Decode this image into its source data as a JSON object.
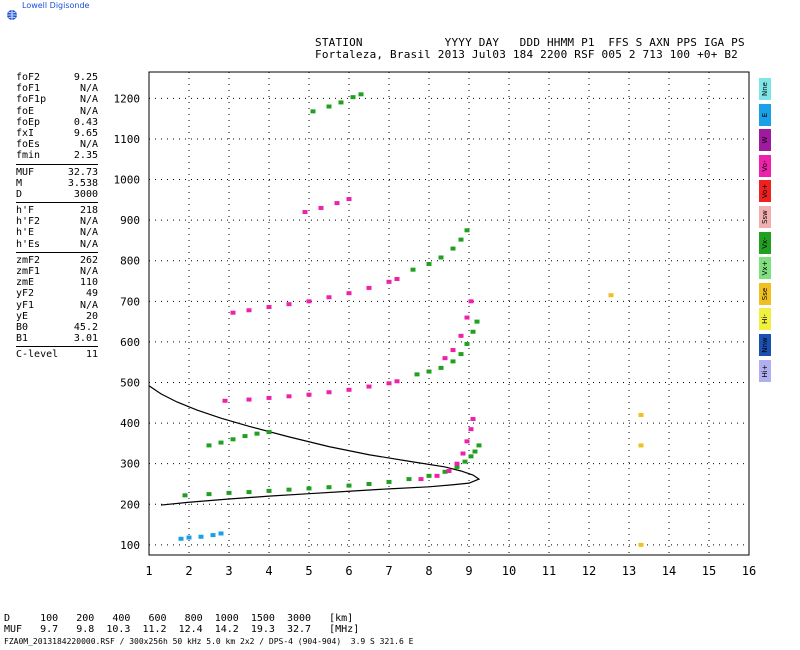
{
  "brand": {
    "label": "Lowell Digisonde"
  },
  "header": {
    "line1": "STATION            YYYY DAY   DDD HHMM P1  FFS S AXN PPS IGA PS",
    "line2": "Fortaleza, Brasil 2013 Jul03 184 2200 RSF 005 2 713 100 +0+ B2"
  },
  "parameters": [
    {
      "name": "foF2",
      "value": "9.25"
    },
    {
      "name": "foF1",
      "value": "N/A"
    },
    {
      "name": "foF1p",
      "value": "N/A"
    },
    {
      "name": "foE",
      "value": "N/A"
    },
    {
      "name": "foEp",
      "value": "0.43"
    },
    {
      "name": "fxI",
      "value": "9.65"
    },
    {
      "name": "foEs",
      "value": "N/A"
    },
    {
      "name": "fmin",
      "value": "2.35"
    },
    {
      "sep": true
    },
    {
      "name": "MUF",
      "value": "32.73"
    },
    {
      "name": "M",
      "value": "3.538"
    },
    {
      "name": "D",
      "value": "3000"
    },
    {
      "sep": true
    },
    {
      "name": "h'F",
      "value": "218"
    },
    {
      "name": "h'F2",
      "value": "N/A"
    },
    {
      "name": "h'E",
      "value": "N/A"
    },
    {
      "name": "h'Es",
      "value": "N/A"
    },
    {
      "sep": true
    },
    {
      "name": "zmF2",
      "value": "262"
    },
    {
      "name": "zmF1",
      "value": "N/A"
    },
    {
      "name": "zmE",
      "value": "110"
    },
    {
      "name": "yF2",
      "value": "49"
    },
    {
      "name": "yF1",
      "value": "N/A"
    },
    {
      "name": "yE",
      "value": "20"
    },
    {
      "name": "B0",
      "value": "45.2"
    },
    {
      "name": "B1",
      "value": "3.01"
    },
    {
      "sep": true
    },
    {
      "name": "C-level",
      "value": "11"
    }
  ],
  "legend": [
    {
      "label": "Nne",
      "color": "#7ee6e6"
    },
    {
      "label": "E",
      "color": "#1aa0e6"
    },
    {
      "label": "W",
      "color": "#a01aa0"
    },
    {
      "label": "Vo-",
      "color": "#ee22aa"
    },
    {
      "label": "Vo+",
      "color": "#ee2020"
    },
    {
      "label": "Ssw",
      "color": "#f0b0b0"
    },
    {
      "label": "Vx-",
      "color": "#20a020"
    },
    {
      "label": "Vx+",
      "color": "#80e080"
    },
    {
      "label": "Sse",
      "color": "#f0c020"
    },
    {
      "label": "Hi-",
      "color": "#f0f040"
    },
    {
      "label": "Nnw",
      "color": "#1a50b0"
    },
    {
      "label": "Hi+",
      "color": "#b0b0f0"
    }
  ],
  "bottom": {
    "line1": "D     100   200   400   600   800  1000  1500  3000   [km]",
    "line2": "MUF   9.7   9.8  10.3  11.2  12.4  14.2  19.3  32.7   [MHz]",
    "line3": "FZA0M_2013184220000.RSF / 300x256h 50 kHz 5.0 km 2x2 / DPS-4 (904-904)  3.9 S 321.6 E"
  },
  "chart_data": {
    "type": "scatter",
    "title": "",
    "xlabel": "",
    "ylabel": "",
    "xlim": [
      1,
      16
    ],
    "ylim": [
      75,
      1265
    ],
    "xticks": [
      1,
      2,
      3,
      4,
      5,
      6,
      7,
      8,
      9,
      10,
      11,
      12,
      13,
      14,
      15,
      16
    ],
    "yticks": [
      100,
      200,
      300,
      400,
      500,
      600,
      700,
      800,
      900,
      1000,
      1100,
      1200
    ],
    "grid": "dotted",
    "traces": [
      {
        "name": "",
        "color": "#20a020",
        "points": [
          [
            1.9,
            222
          ],
          [
            2.5,
            225
          ],
          [
            3,
            228
          ],
          [
            3.5,
            230
          ],
          [
            4,
            233
          ],
          [
            4.5,
            236
          ],
          [
            5,
            239
          ],
          [
            5.5,
            242
          ],
          [
            6,
            246
          ],
          [
            6.5,
            250
          ],
          [
            7,
            255
          ],
          [
            7.5,
            262
          ],
          [
            8,
            270
          ],
          [
            8.4,
            280
          ],
          [
            8.7,
            292
          ],
          [
            8.9,
            305
          ],
          [
            9.05,
            318
          ],
          [
            9.15,
            330
          ],
          [
            9.25,
            345
          ]
        ]
      },
      {
        "name": "",
        "color": "#ee22aa",
        "points": [
          [
            7.8,
            262
          ],
          [
            8.2,
            270
          ],
          [
            8.5,
            282
          ],
          [
            8.7,
            300
          ],
          [
            8.85,
            325
          ],
          [
            8.95,
            355
          ],
          [
            9.05,
            385
          ],
          [
            9.1,
            410
          ]
        ]
      },
      {
        "name": "",
        "color": "#20a020",
        "points": [
          [
            2.5,
            345
          ],
          [
            2.8,
            352
          ],
          [
            3.1,
            360
          ],
          [
            3.4,
            368
          ],
          [
            3.7,
            374
          ],
          [
            4,
            378
          ]
        ]
      },
      {
        "name": "",
        "color": "#ee22aa",
        "points": [
          [
            2.9,
            455
          ],
          [
            3.5,
            458
          ],
          [
            4,
            462
          ],
          [
            4.5,
            466
          ],
          [
            5,
            470
          ],
          [
            5.5,
            476
          ],
          [
            6,
            482
          ],
          [
            6.5,
            490
          ],
          [
            7,
            498
          ],
          [
            7.2,
            503
          ]
        ]
      },
      {
        "name": "",
        "color": "#20a020",
        "points": [
          [
            7.7,
            520
          ],
          [
            8,
            527
          ],
          [
            8.3,
            536
          ],
          [
            8.6,
            552
          ],
          [
            8.8,
            570
          ],
          [
            8.95,
            595
          ],
          [
            9.1,
            625
          ],
          [
            9.2,
            650
          ]
        ]
      },
      {
        "name": "",
        "color": "#ee22aa",
        "points": [
          [
            8.4,
            560
          ],
          [
            8.6,
            580
          ],
          [
            8.8,
            615
          ],
          [
            8.95,
            660
          ],
          [
            9.05,
            700
          ]
        ]
      },
      {
        "name": "",
        "color": "#ee22aa",
        "points": [
          [
            3.1,
            672
          ],
          [
            3.5,
            678
          ],
          [
            4,
            686
          ],
          [
            4.5,
            693
          ],
          [
            5,
            700
          ],
          [
            5.5,
            710
          ],
          [
            6,
            720
          ],
          [
            6.5,
            733
          ],
          [
            7,
            748
          ],
          [
            7.2,
            755
          ]
        ]
      },
      {
        "name": "",
        "color": "#20a020",
        "points": [
          [
            7.6,
            778
          ],
          [
            8,
            792
          ],
          [
            8.3,
            808
          ],
          [
            8.6,
            830
          ],
          [
            8.8,
            852
          ],
          [
            8.95,
            875
          ]
        ]
      },
      {
        "name": "",
        "color": "#ee22aa",
        "points": [
          [
            4.9,
            920
          ],
          [
            5.3,
            930
          ],
          [
            5.7,
            942
          ],
          [
            6,
            952
          ]
        ]
      },
      {
        "name": "",
        "color": "#20a020",
        "points": [
          [
            5.1,
            1168
          ],
          [
            5.5,
            1180
          ],
          [
            5.8,
            1190
          ],
          [
            6.1,
            1203
          ],
          [
            6.3,
            1210
          ]
        ]
      },
      {
        "name": "",
        "color": "#1aa0e6",
        "points": [
          [
            1.8,
            115
          ],
          [
            2,
            118
          ],
          [
            2.3,
            120
          ],
          [
            2.6,
            124
          ],
          [
            2.8,
            128
          ]
        ]
      },
      {
        "name": "",
        "color": "#f0c020",
        "points": [
          [
            13.3,
            345
          ],
          [
            13.3,
            420
          ],
          [
            13.3,
            100
          ],
          [
            12.55,
            715
          ]
        ]
      }
    ],
    "profile": [
      [
        1.3,
        198
      ],
      [
        2,
        205
      ],
      [
        3,
        213
      ],
      [
        4,
        220
      ],
      [
        5,
        226
      ],
      [
        6,
        232
      ],
      [
        7,
        238
      ],
      [
        8,
        243
      ],
      [
        8.6,
        248
      ],
      [
        9,
        252
      ],
      [
        9.25,
        262
      ],
      [
        9.1,
        272
      ],
      [
        8.8,
        282
      ],
      [
        8.4,
        292
      ],
      [
        7.5,
        306
      ],
      [
        6.5,
        322
      ],
      [
        5.5,
        342
      ],
      [
        4.5,
        366
      ],
      [
        3.5,
        392
      ],
      [
        2.8,
        412
      ],
      [
        2.2,
        432
      ],
      [
        1.7,
        452
      ],
      [
        1.3,
        472
      ],
      [
        1,
        492
      ]
    ]
  }
}
